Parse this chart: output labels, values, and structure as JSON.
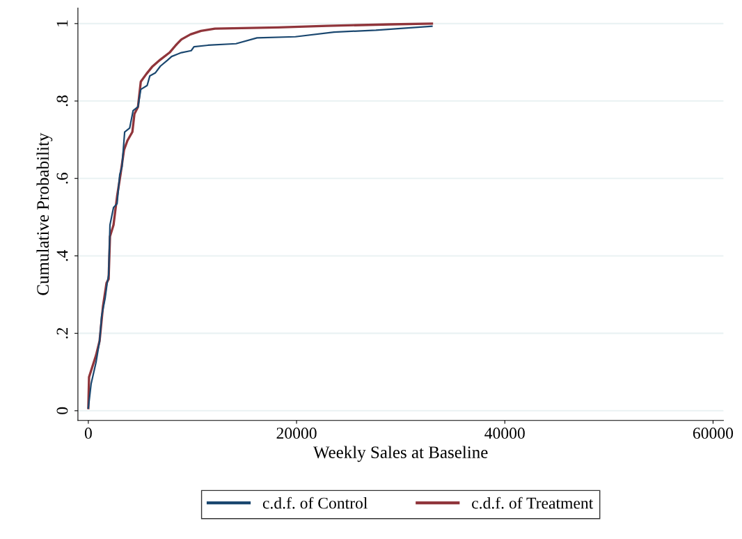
{
  "chart_data": {
    "type": "line",
    "xlabel": "Weekly Sales at Baseline",
    "ylabel": "Cumulative Probability",
    "xlim": [
      -1000,
      61000
    ],
    "xticks": [
      0,
      20000,
      40000,
      60000
    ],
    "ylim": [
      -0.025,
      1.04
    ],
    "yticks": [
      {
        "value": 0,
        "label": "0"
      },
      {
        "value": 0.2,
        "label": ".2"
      },
      {
        "value": 0.4,
        "label": ".4"
      },
      {
        "value": 0.6,
        "label": ".6"
      },
      {
        "value": 0.8,
        "label": ".8"
      },
      {
        "value": 1,
        "label": "1"
      }
    ],
    "grid": "y",
    "legend": "bottom",
    "line_style": "solid",
    "marker": "none",
    "series": [
      {
        "name": "c.d.f. of Control",
        "color": "#1a476f",
        "x": [
          0,
          270,
          740,
          1080,
          1280,
          1610,
          1810,
          1950,
          2080,
          2420,
          2760,
          3020,
          3230,
          3490,
          3970,
          4300,
          4770,
          5040,
          5650,
          5910,
          6450,
          6920,
          7590,
          8000,
          8940,
          9880,
          10150,
          11490,
          14180,
          16200,
          19890,
          23590,
          27620,
          33000
        ],
        "values": [
          0.007,
          0.07,
          0.125,
          0.18,
          0.245,
          0.29,
          0.33,
          0.35,
          0.48,
          0.525,
          0.535,
          0.61,
          0.63,
          0.72,
          0.73,
          0.775,
          0.785,
          0.83,
          0.84,
          0.865,
          0.873,
          0.89,
          0.905,
          0.915,
          0.925,
          0.93,
          0.94,
          0.944,
          0.948,
          0.963,
          0.966,
          0.978,
          0.983,
          0.993
        ]
      },
      {
        "name": "c.d.f. of Treatment",
        "color": "#90353b",
        "x": [
          0,
          70,
          400,
          740,
          1080,
          1410,
          1750,
          1950,
          2080,
          2420,
          2760,
          3090,
          3430,
          3760,
          4230,
          4430,
          4770,
          5040,
          5580,
          6120,
          6920,
          7800,
          8400,
          8940,
          9810,
          10820,
          12160,
          18220,
          22930,
          28980,
          33000
        ],
        "values": [
          0.007,
          0.087,
          0.115,
          0.143,
          0.18,
          0.27,
          0.33,
          0.34,
          0.45,
          0.48,
          0.553,
          0.61,
          0.674,
          0.698,
          0.72,
          0.767,
          0.785,
          0.85,
          0.87,
          0.888,
          0.907,
          0.925,
          0.944,
          0.959,
          0.972,
          0.981,
          0.987,
          0.99,
          0.994,
          0.998,
          1.0
        ]
      }
    ]
  }
}
